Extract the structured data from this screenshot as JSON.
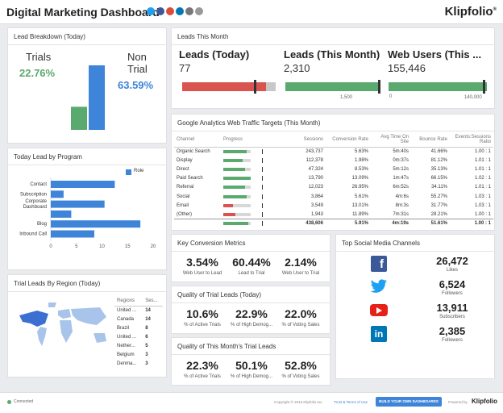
{
  "header": {
    "title": "Digital Marketing Dashboard",
    "brand": "Klipfolio"
  },
  "colors": {
    "green": "#5aa96e",
    "blue": "#3e84d8",
    "red": "#d9534f"
  },
  "lead_breakdown": {
    "title": "Lead Breakdown (Today)",
    "trials_label": "Trials",
    "trials_value": "22.76%",
    "non_trial_label_1": "Non",
    "non_trial_label_2": "Trial",
    "non_trial_value": "63.59%",
    "chart_data": {
      "type": "bar",
      "categories": [
        "Trials",
        "Non Trial"
      ],
      "values": [
        22.76,
        63.59
      ]
    }
  },
  "leads_month": {
    "title": "Leads This Month",
    "metrics": [
      {
        "label": "Leads (Today)",
        "value": "77",
        "scale_min": "",
        "scale_max": "",
        "fill": 0.9
      },
      {
        "label": "Leads (This Month)",
        "value": "2,310",
        "scale_min": "1,500",
        "scale_max": "",
        "fill": 1.0
      },
      {
        "label": "Web Users (This ...",
        "value": "155,446",
        "scale_min": "0",
        "scale_max": "140,000",
        "fill": 1.0
      }
    ]
  },
  "ga": {
    "title": "Google Analytics Web Traffic Targets (This Month)",
    "headers": [
      "Channel",
      "Progress",
      "",
      "Sessions",
      "Conversion Rate",
      "Avg Time On Site",
      "Bounce Rate",
      "Events:Sessions Ratio"
    ],
    "rows": [
      {
        "channel": "Organic Search",
        "sessions": "243,737",
        "conv": "5.63%",
        "time": "5m:40s",
        "bounce": "41.66%",
        "ratio": "1.00 : 1",
        "progress": 0.85
      },
      {
        "channel": "Display",
        "sessions": "112,378",
        "conv": "1.98%",
        "time": "0m:37s",
        "bounce": "81.12%",
        "ratio": "1.01 : 1",
        "progress": 0.7
      },
      {
        "channel": "Direct",
        "sessions": "47,324",
        "conv": "8.53%",
        "time": "5m:12s",
        "bounce": "35.13%",
        "ratio": "1.01 : 1",
        "progress": 0.8
      },
      {
        "channel": "Paid Search",
        "sessions": "13,790",
        "conv": "13.09%",
        "time": "1m:47s",
        "bounce": "66.15%",
        "ratio": "1.02 : 1",
        "progress": 1.0
      },
      {
        "channel": "Referral",
        "sessions": "12,023",
        "conv": "26.95%",
        "time": "6m:52s",
        "bounce": "34.11%",
        "ratio": "1.01 : 1",
        "progress": 0.8
      },
      {
        "channel": "Social",
        "sessions": "3,864",
        "conv": "5.61%",
        "time": "4m:6s",
        "bounce": "55.27%",
        "ratio": "1.03 : 1",
        "progress": 0.85
      },
      {
        "channel": "Email",
        "sessions": "3,549",
        "conv": "13.01%",
        "time": "8m:3s",
        "bounce": "31.77%",
        "ratio": "1.03 : 1",
        "progress": 0.35
      },
      {
        "channel": "(Other)",
        "sessions": "1,943",
        "conv": "11.89%",
        "time": "7m:31s",
        "bounce": "28.21%",
        "ratio": "1.00 : 1",
        "progress": 0.45
      }
    ],
    "total": {
      "sessions": "438,606",
      "conv": "5.91%",
      "time": "4m:19s",
      "bounce": "51.61%",
      "ratio": "1.00 : 1",
      "progress": 0.9
    }
  },
  "program": {
    "title": "Today Lead by Program",
    "legend": "Role",
    "chart_data": {
      "type": "bar",
      "categories": [
        "Contact",
        "Subscription",
        "Corporate Dashboard",
        "",
        "Blog",
        "Inbound Call"
      ],
      "values": [
        12.5,
        2.5,
        10.5,
        4,
        17.5,
        8.5
      ],
      "xticks": [
        "0",
        "5",
        "10",
        "15",
        "20"
      ],
      "xlim": [
        0,
        20
      ]
    },
    "label_lines": [
      [
        "Contact"
      ],
      [
        "Subscription"
      ],
      [
        "Corporate",
        "Dashboard"
      ],
      [
        ""
      ],
      [
        "Blog"
      ],
      [
        "Inbound Call"
      ]
    ]
  },
  "region": {
    "title": "Trial Leads By Region (Today)",
    "headers": [
      "Regions",
      "Ses..."
    ],
    "rows": [
      {
        "region": "United ...",
        "value": "14"
      },
      {
        "region": "Canada",
        "value": "14"
      },
      {
        "region": "Brazil",
        "value": "8"
      },
      {
        "region": "United ...",
        "value": "6"
      },
      {
        "region": "Nether...",
        "value": "5"
      },
      {
        "region": "Belgium",
        "value": "3"
      },
      {
        "region": "Denma...",
        "value": "3"
      }
    ]
  },
  "key_conv": {
    "title": "Key Conversion Metrics",
    "items": [
      {
        "value": "3.54%",
        "label": "Web User to Lead"
      },
      {
        "value": "60.44%",
        "label": "Lead to Trial"
      },
      {
        "value": "2.14%",
        "label": "Web User to Trial"
      }
    ]
  },
  "quality_today": {
    "title": "Quality of Trial Leads (Today)",
    "items": [
      {
        "value": "10.6%",
        "label": "% of Active Trials"
      },
      {
        "value": "22.9%",
        "label": "% of High Demog..."
      },
      {
        "value": "22.0%",
        "label": "% of Voting Sales"
      }
    ]
  },
  "quality_month": {
    "title": "Quality of This Month's Trial Leads",
    "items": [
      {
        "value": "22.3%",
        "label": "% of Active Trials"
      },
      {
        "value": "50.1%",
        "label": "% of High Demog..."
      },
      {
        "value": "52.8%",
        "label": "% of Voting Sales"
      }
    ]
  },
  "social": {
    "title": "Top Social Media Channels",
    "items": [
      {
        "icon": "facebook-icon",
        "value": "26,472",
        "label": "Likes",
        "color": "#3b5998"
      },
      {
        "icon": "twitter-icon",
        "value": "6,524",
        "label": "Followers",
        "color": "#1da1f2"
      },
      {
        "icon": "youtube-icon",
        "value": "13,911",
        "label": "Subscribers",
        "color": "#e62117"
      },
      {
        "icon": "linkedin-icon",
        "value": "2,385",
        "label": "Followers",
        "color": "#0077b5"
      }
    ]
  },
  "footer": {
    "connected": "Connected",
    "copyright": "Copyright © 2016 Klipfolio Inc.",
    "trust": "Trust & Terms of Use",
    "build_button": "BUILD YOUR OWN DASHBOARDS",
    "powered": "Powered by",
    "brand": "Klipfolio"
  }
}
